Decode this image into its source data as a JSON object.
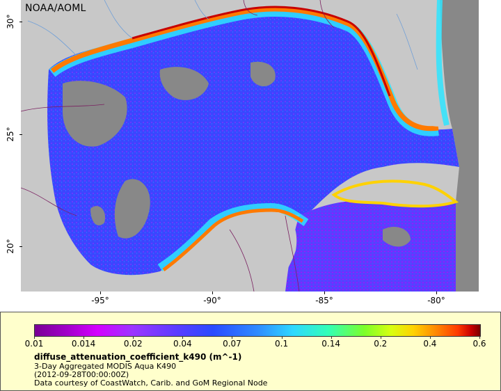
{
  "map": {
    "agency_label": "NOAA/AOML",
    "lat_ticks": [
      "30°",
      "25°",
      "20°"
    ],
    "lon_ticks": [
      "-95°",
      "-90°",
      "-85°",
      "-80°"
    ],
    "colors": {
      "land": "#c8c8c8",
      "no_data": "#888888",
      "open_gulf": "#3b46ff",
      "deep_blue": "#2d3cf0",
      "coastal_turbid": "#ff7a00",
      "coastal_high": "#c80000",
      "coastal_mid": "#2ee5ff",
      "borders": "#7a2060"
    }
  },
  "legend": {
    "colorbar_ticks": [
      "0.01",
      "0.014",
      "0.02",
      "0.04",
      "0.07",
      "0.1",
      "0.14",
      "0.2",
      "0.4",
      "0.6"
    ],
    "variable": "diffuse_attenuation_coefficient_k490 (m^-1)",
    "product": "3-Day Aggregated MODIS Aqua K490",
    "time": "(2012-09-28T00:00:00Z)",
    "credit": "Data courtesy of CoastWatch, Carib. and GoM Regional Node"
  }
}
